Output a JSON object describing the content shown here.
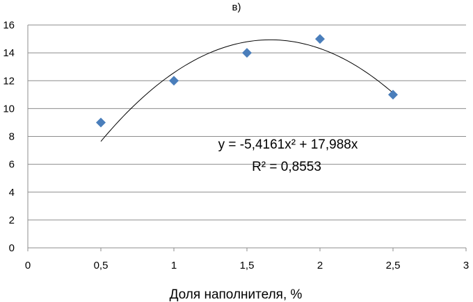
{
  "chart_data": {
    "type": "scatter",
    "title": "в)",
    "xlabel": "Доля наполнителя, %",
    "ylabel": "",
    "xlim": [
      0,
      3
    ],
    "ylim": [
      0,
      16
    ],
    "x_ticks": [
      0,
      0.5,
      1,
      1.5,
      2,
      2.5,
      3
    ],
    "x_tick_labels": [
      "0",
      "0,5",
      "1",
      "1,5",
      "2",
      "2,5",
      "3"
    ],
    "y_ticks": [
      0,
      2,
      4,
      6,
      8,
      10,
      12,
      14,
      16
    ],
    "y_tick_labels": [
      "0",
      "2",
      "4",
      "6",
      "8",
      "10",
      "12",
      "14",
      "16"
    ],
    "grid": "horizontal",
    "series": [
      {
        "marker": "diamond",
        "color": "#4a7ebb",
        "points": [
          {
            "x": 0.5,
            "y": 9
          },
          {
            "x": 1,
            "y": 12
          },
          {
            "x": 1.5,
            "y": 14
          },
          {
            "x": 2,
            "y": 15
          },
          {
            "x": 2.5,
            "y": 11
          }
        ]
      }
    ],
    "trendline": {
      "type": "polynomial",
      "a": -5.4161,
      "b": 17.988,
      "c": 0,
      "x_range": [
        0.5,
        2.5
      ],
      "color": "#000000",
      "equation_label": "y = -5,4161x² + 17,988x",
      "r2_label": "R² = 0,8553"
    }
  }
}
